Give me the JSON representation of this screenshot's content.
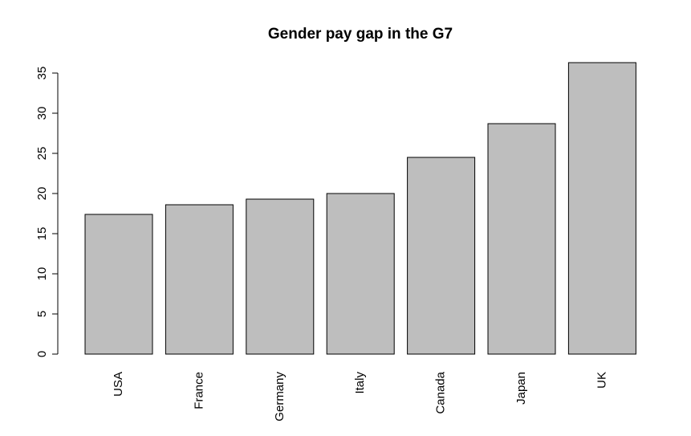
{
  "chart_data": {
    "type": "bar",
    "title": "Gender pay gap in the G7",
    "xlabel": "",
    "ylabel": "",
    "categories": [
      "USA",
      "France",
      "Germany",
      "Italy",
      "Canada",
      "Japan",
      "UK"
    ],
    "values": [
      17.4,
      18.6,
      19.3,
      20.0,
      24.5,
      28.7,
      36.3
    ],
    "y_ticks": [
      0,
      5,
      10,
      15,
      20,
      25,
      30,
      35
    ],
    "ylim": [
      0,
      36.3
    ],
    "grid": false,
    "legend": "none",
    "colors": {
      "bar_fill": "#bebebe",
      "bar_stroke": "#000000",
      "axis": "#000000"
    }
  }
}
